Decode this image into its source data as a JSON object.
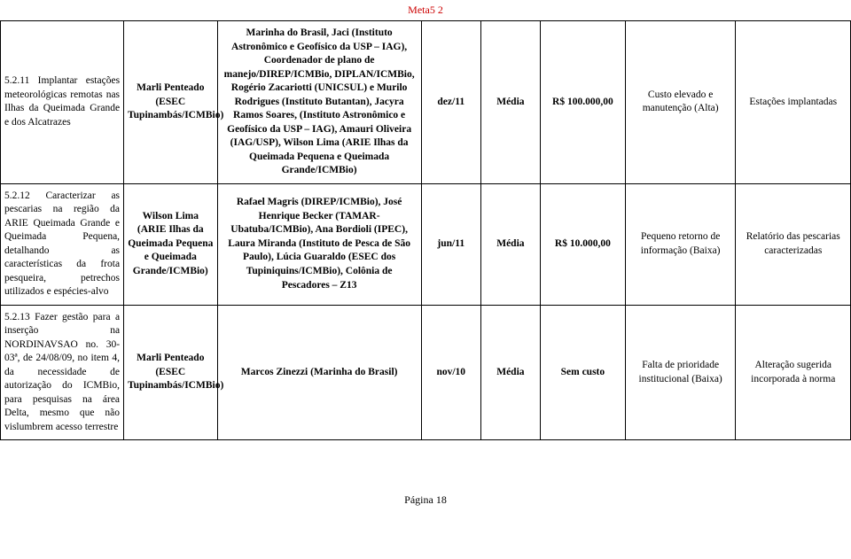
{
  "header": "Meta5 2",
  "footer": "Página 18",
  "rows": [
    {
      "c0": "5.2.11 Implantar estações meteorológicas remotas nas Ilhas da Queimada Grande e dos Alcatrazes",
      "c1": "Marli Penteado (ESEC Tupinambás/ICMBio)",
      "c2": "Marinha do Brasil, Jaci (Instituto Astronômico e Geofísico da USP – IAG), Coordenador de plano de manejo/DIREP/ICMBio, DIPLAN/ICMBio, Rogério Zacariotti (UNICSUL) e Murilo Rodrigues (Instituto Butantan), Jacyra Ramos Soares, (Instituto Astronômico e Geofísico da USP – IAG), Amauri Oliveira (IAG/USP), Wilson Lima (ARIE Ilhas da Queimada Pequena e Queimada Grande/ICMBio)",
      "c3": "dez/11",
      "c4": "Média",
      "c5": "R$ 100.000,00",
      "c6": "Custo elevado e manutenção (Alta)",
      "c7": "Estações implantadas"
    },
    {
      "c0": "5.2.12 Caracterizar as pescarias na região da ARIE Queimada Grande e Queimada Pequena, detalhando as características da frota pesqueira, petrechos utilizados e espécies-alvo",
      "c1": "Wilson Lima (ARIE Ilhas da Queimada Pequena e Queimada Grande/ICMBio)",
      "c2": "Rafael Magris (DIREP/ICMBio), José Henrique Becker (TAMAR-Ubatuba/ICMBio), Ana Bordioli (IPEC), Laura Miranda (Instituto de Pesca de São Paulo), Lúcia Guaraldo (ESEC dos Tupiniquins/ICMBio), Colônia de Pescadores – Z13",
      "c3": "jun/11",
      "c4": "Média",
      "c5": "R$ 10.000,00",
      "c6": "Pequeno retorno de informação (Baixa)",
      "c7": "Relatório das pescarias caracterizadas"
    },
    {
      "c0": "5.2.13 Fazer gestão para a inserção na NORDINAVSAO no. 30-03ª, de 24/08/09, no item 4, da necessidade de autorização do ICMBio, para pesquisas na área Delta, mesmo que não vislumbrem acesso terrestre",
      "c1": "Marli Penteado (ESEC Tupinambás/ICMBio)",
      "c2": "Marcos Zinezzi (Marinha do Brasil)",
      "c3": "nov/10",
      "c4": "Média",
      "c5": "Sem custo",
      "c6": "Falta de prioridade institucional (Baixa)",
      "c7": "Alteração sugerida incorporada à norma"
    }
  ]
}
